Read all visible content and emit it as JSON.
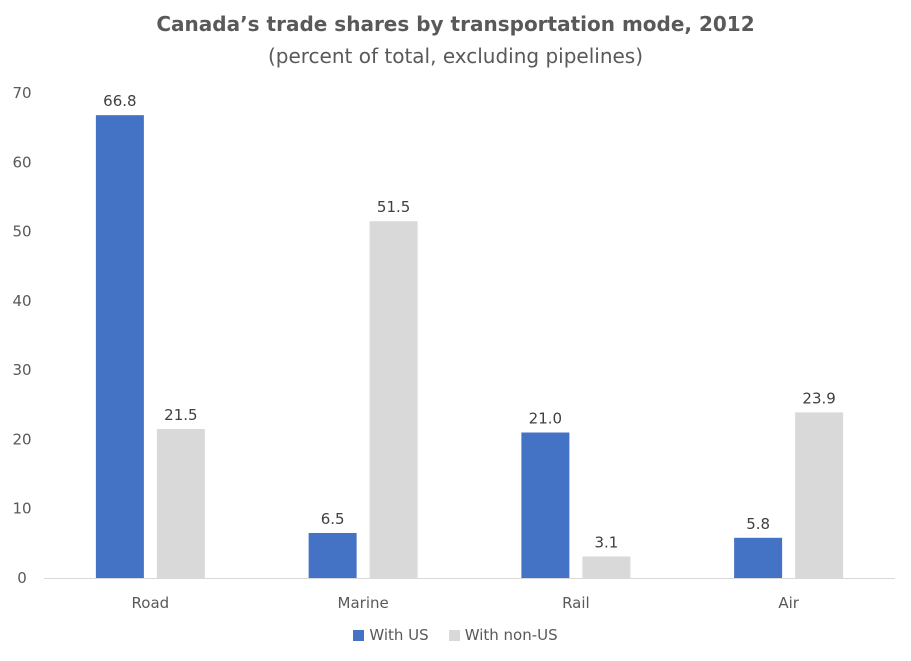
{
  "chart_data": {
    "type": "bar",
    "title": "Canada’s trade shares by transportation mode, 2012",
    "subtitle": "(percent of total, excluding pipelines)",
    "categories": [
      "Road",
      "Marine",
      "Rail",
      "Air"
    ],
    "series": [
      {
        "name": "With US",
        "values": [
          66.8,
          6.5,
          21.0,
          5.8
        ],
        "labels": [
          "66.8",
          "6.5",
          "21.0",
          "5.8"
        ],
        "color": "#4472C4"
      },
      {
        "name": "With non-US",
        "values": [
          21.5,
          51.5,
          3.1,
          23.9
        ],
        "labels": [
          "21.5",
          "51.5",
          "3.1",
          "23.9"
        ],
        "color": "#D9D9D9"
      }
    ],
    "yticks": [
      "0",
      "10",
      "20",
      "30",
      "40",
      "50",
      "60",
      "70"
    ],
    "ylim": [
      0,
      70
    ],
    "xlabel": "",
    "ylabel": "",
    "grid": false,
    "legend_position": "bottom"
  }
}
